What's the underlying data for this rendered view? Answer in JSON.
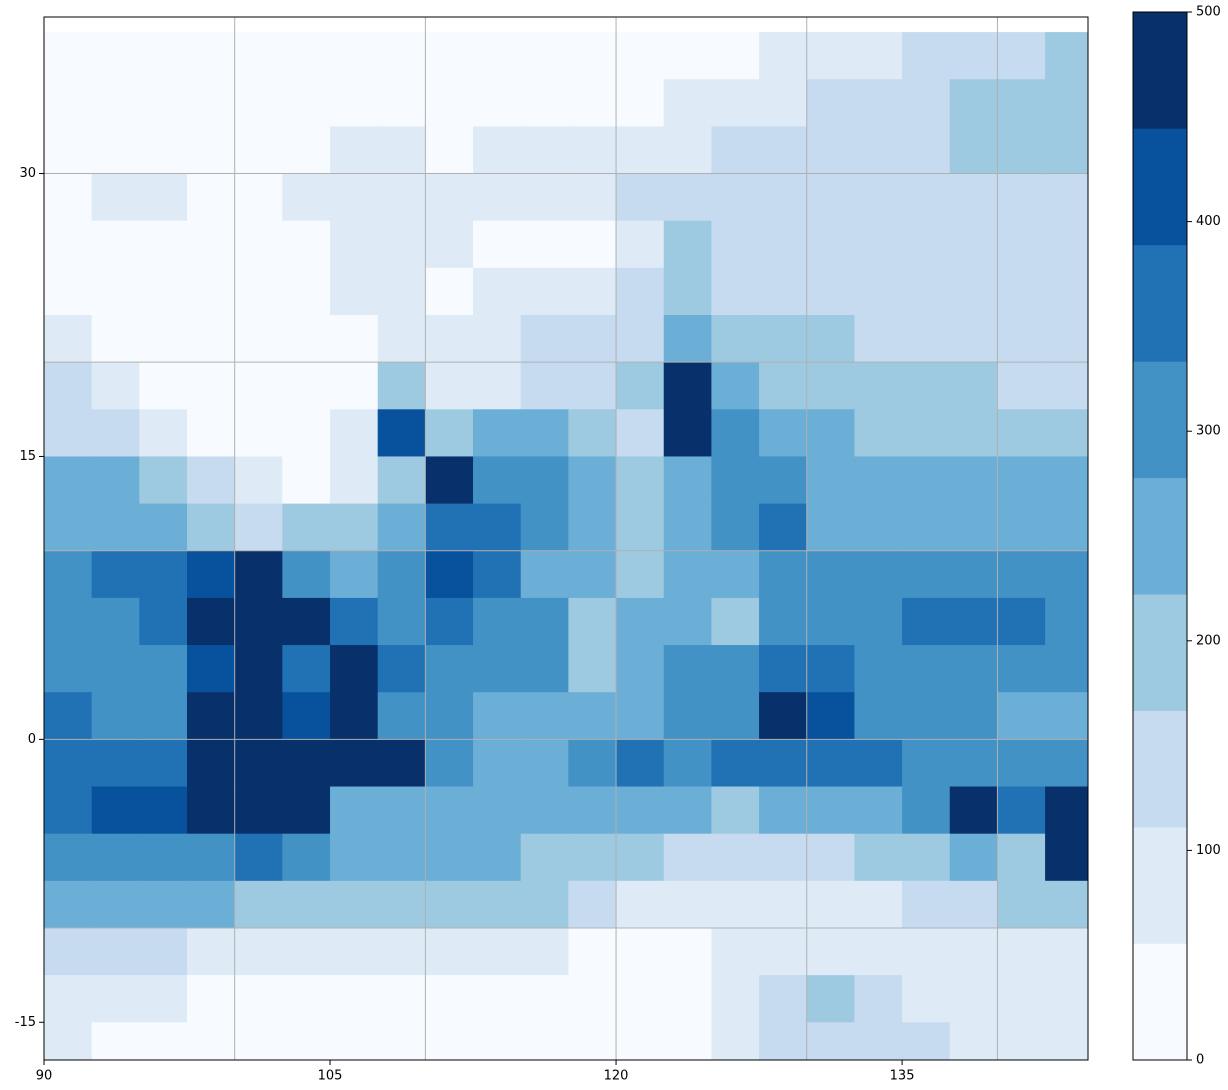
{
  "chart_data": {
    "type": "heatmap",
    "xbins": [
      90,
      92.5,
      95,
      97.5,
      100,
      102.5,
      105,
      107.5,
      110,
      112.5,
      115,
      117.5,
      120,
      122.5,
      125,
      127.5,
      130,
      132.5,
      135,
      137.5,
      140,
      142.5,
      145
    ],
    "ybins": [
      37.5,
      35,
      32.5,
      30,
      27.5,
      25,
      22.5,
      20,
      17.5,
      15,
      12.5,
      10,
      7.5,
      5,
      2.5,
      0,
      -2.5,
      -5,
      -7.5,
      -10,
      -12.5,
      -15,
      -17.5
    ],
    "z": [
      [
        25,
        25,
        25,
        25,
        25,
        25,
        25,
        25,
        25,
        25,
        25,
        25,
        25,
        25,
        25,
        85,
        85,
        85,
        140,
        140,
        140,
        195
      ],
      [
        25,
        25,
        25,
        25,
        25,
        25,
        25,
        25,
        25,
        25,
        25,
        25,
        25,
        85,
        85,
        85,
        140,
        140,
        140,
        195,
        195,
        195
      ],
      [
        25,
        25,
        25,
        25,
        25,
        25,
        85,
        85,
        25,
        85,
        85,
        85,
        85,
        85,
        140,
        140,
        140,
        140,
        140,
        195,
        195,
        195
      ],
      [
        25,
        85,
        85,
        25,
        25,
        85,
        85,
        85,
        85,
        85,
        85,
        85,
        140,
        140,
        140,
        140,
        140,
        140,
        140,
        140,
        140,
        140
      ],
      [
        25,
        25,
        25,
        25,
        25,
        25,
        85,
        85,
        85,
        25,
        25,
        25,
        85,
        195,
        140,
        140,
        140,
        140,
        140,
        140,
        140,
        140
      ],
      [
        25,
        25,
        25,
        25,
        25,
        25,
        85,
        85,
        25,
        85,
        85,
        85,
        140,
        195,
        140,
        140,
        140,
        140,
        140,
        140,
        140,
        140
      ],
      [
        85,
        25,
        25,
        25,
        25,
        25,
        25,
        85,
        85,
        85,
        140,
        140,
        140,
        250,
        195,
        195,
        195,
        140,
        140,
        140,
        140,
        140
      ],
      [
        140,
        85,
        25,
        25,
        25,
        25,
        25,
        195,
        85,
        85,
        140,
        140,
        195,
        470,
        250,
        195,
        195,
        195,
        195,
        195,
        140,
        140
      ],
      [
        140,
        140,
        85,
        25,
        25,
        25,
        85,
        415,
        195,
        250,
        250,
        195,
        140,
        470,
        305,
        250,
        250,
        195,
        195,
        195,
        195,
        195
      ],
      [
        250,
        250,
        195,
        140,
        85,
        25,
        85,
        195,
        470,
        305,
        305,
        250,
        195,
        250,
        305,
        305,
        250,
        250,
        250,
        250,
        250,
        250
      ],
      [
        250,
        250,
        250,
        195,
        140,
        195,
        195,
        250,
        360,
        360,
        305,
        250,
        195,
        250,
        305,
        360,
        250,
        250,
        250,
        250,
        250,
        250
      ],
      [
        305,
        360,
        360,
        415,
        470,
        305,
        250,
        305,
        415,
        360,
        250,
        250,
        195,
        250,
        250,
        305,
        305,
        305,
        305,
        305,
        305,
        305
      ],
      [
        305,
        305,
        360,
        470,
        470,
        470,
        360,
        305,
        360,
        305,
        305,
        195,
        250,
        250,
        195,
        305,
        305,
        305,
        360,
        360,
        360,
        305
      ],
      [
        305,
        305,
        305,
        415,
        470,
        360,
        470,
        360,
        305,
        305,
        305,
        195,
        250,
        305,
        305,
        360,
        360,
        305,
        305,
        305,
        305,
        305
      ],
      [
        360,
        305,
        305,
        470,
        470,
        415,
        470,
        305,
        305,
        250,
        250,
        250,
        250,
        305,
        305,
        470,
        415,
        305,
        305,
        305,
        250,
        250
      ],
      [
        360,
        360,
        360,
        470,
        470,
        470,
        470,
        470,
        305,
        250,
        250,
        305,
        360,
        305,
        360,
        360,
        360,
        360,
        305,
        305,
        305,
        305
      ],
      [
        360,
        415,
        415,
        470,
        470,
        470,
        250,
        250,
        250,
        250,
        250,
        250,
        250,
        250,
        195,
        250,
        250,
        250,
        305,
        470,
        360,
        470
      ],
      [
        305,
        305,
        305,
        305,
        360,
        305,
        250,
        250,
        250,
        250,
        195,
        195,
        195,
        140,
        140,
        140,
        140,
        195,
        195,
        250,
        195,
        470
      ],
      [
        250,
        250,
        250,
        250,
        195,
        195,
        195,
        195,
        195,
        195,
        195,
        140,
        85,
        85,
        85,
        85,
        85,
        85,
        140,
        140,
        195,
        195
      ],
      [
        140,
        140,
        140,
        85,
        85,
        85,
        85,
        85,
        85,
        85,
        85,
        25,
        25,
        25,
        85,
        85,
        85,
        85,
        85,
        85,
        85,
        85
      ],
      [
        85,
        85,
        85,
        25,
        25,
        25,
        25,
        25,
        25,
        25,
        25,
        25,
        25,
        25,
        85,
        140,
        195,
        140,
        85,
        85,
        85,
        85
      ],
      [
        85,
        25,
        25,
        25,
        25,
        25,
        25,
        25,
        25,
        25,
        25,
        25,
        25,
        25,
        85,
        140,
        140,
        140,
        140,
        85,
        85,
        85
      ]
    ],
    "xlim": [
      90,
      144.75
    ],
    "ylim": [
      -17,
      38.3
    ],
    "xticks": [
      90,
      105,
      120,
      135
    ],
    "yticks": [
      -15,
      0,
      15,
      30
    ],
    "xgrid": [
      100,
      110,
      120,
      130,
      140
    ],
    "ygrid": [
      -10,
      0,
      10,
      20,
      30
    ],
    "colorbar": {
      "levels": [
        0,
        55.56,
        111.11,
        166.67,
        222.22,
        277.78,
        333.33,
        388.89,
        444.44,
        500
      ],
      "colors": [
        "#f7fbff",
        "#deebf7",
        "#c6dbef",
        "#9ecae1",
        "#6baed6",
        "#4292c6",
        "#2171b5",
        "#08519c",
        "#08306b"
      ],
      "ticks": [
        0,
        100,
        200,
        300,
        400,
        500
      ]
    }
  }
}
